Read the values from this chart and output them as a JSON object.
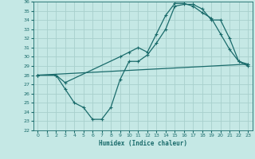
{
  "xlabel": "Humidex (Indice chaleur)",
  "bg_color": "#c5e8e5",
  "line_color": "#1a6b6b",
  "grid_color": "#a8d0cc",
  "xlim": [
    -0.5,
    23.5
  ],
  "ylim": [
    22,
    36
  ],
  "xticks": [
    0,
    1,
    2,
    3,
    4,
    5,
    6,
    7,
    8,
    9,
    10,
    11,
    12,
    13,
    14,
    15,
    16,
    17,
    18,
    19,
    20,
    21,
    22,
    23
  ],
  "yticks": [
    22,
    23,
    24,
    25,
    26,
    27,
    28,
    29,
    30,
    31,
    32,
    33,
    34,
    35,
    36
  ],
  "line1_x": [
    0,
    2,
    3,
    4,
    5,
    6,
    7,
    8,
    9,
    10,
    11,
    12,
    13,
    14,
    15,
    16,
    17,
    18,
    19,
    20,
    21,
    22,
    23
  ],
  "line1_y": [
    28.0,
    28.0,
    26.5,
    25.0,
    24.5,
    23.2,
    23.2,
    24.5,
    27.5,
    29.5,
    29.5,
    30.2,
    31.5,
    33.0,
    35.5,
    35.7,
    35.7,
    35.2,
    34.0,
    34.0,
    32.0,
    29.5,
    29.0
  ],
  "line2_x": [
    0,
    2,
    3,
    9,
    10,
    11,
    12,
    13,
    14,
    15,
    16,
    17,
    18,
    19,
    20,
    21,
    22,
    23
  ],
  "line2_y": [
    28.0,
    28.0,
    27.2,
    30.0,
    30.5,
    31.0,
    30.5,
    32.5,
    34.5,
    35.8,
    35.8,
    35.5,
    34.8,
    34.2,
    32.5,
    30.8,
    29.5,
    29.2
  ],
  "line3_x": [
    0,
    23
  ],
  "line3_y": [
    28.0,
    29.2
  ]
}
